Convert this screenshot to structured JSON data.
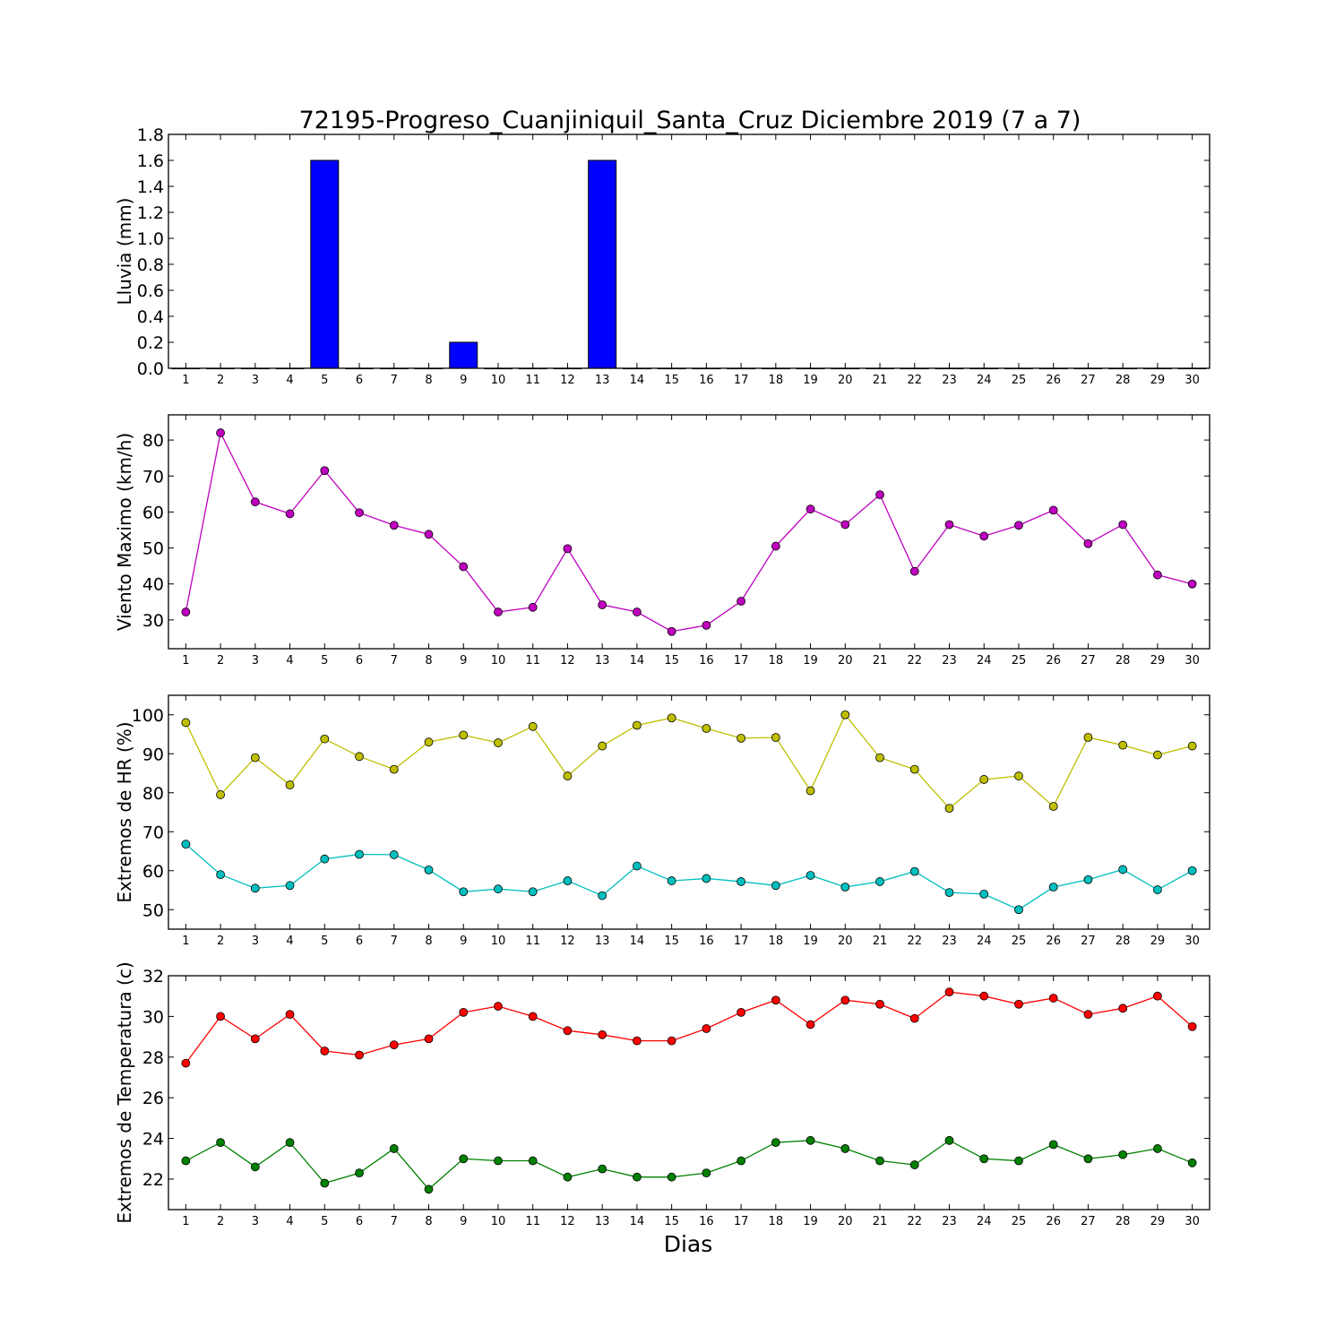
{
  "chart_data": {
    "title": "72195-Progreso_Cuanjiniquil_Santa_Cruz Diciembre 2019  (7 a 7)",
    "xlabel": "Dias",
    "x": [
      1,
      2,
      3,
      4,
      5,
      6,
      7,
      8,
      9,
      10,
      11,
      12,
      13,
      14,
      15,
      16,
      17,
      18,
      19,
      20,
      21,
      22,
      23,
      24,
      25,
      26,
      27,
      28,
      29,
      30
    ],
    "panels": [
      {
        "type": "bar",
        "ylabel": "Lluvia (mm)",
        "ylim": [
          0,
          1.8
        ],
        "yticks": [
          0.0,
          0.2,
          0.4,
          0.6,
          0.8,
          1.0,
          1.2,
          1.4,
          1.6,
          1.8
        ],
        "ytick_decimals": 1,
        "series": [
          {
            "color": "#0000ff",
            "values": [
              0,
              0,
              0,
              0,
              1.6,
              0,
              0,
              0,
              0.2,
              0,
              0,
              0,
              1.6,
              0,
              0,
              0,
              0,
              0,
              0,
              0,
              0,
              0,
              0,
              0,
              0,
              0,
              0,
              0,
              0,
              0
            ]
          }
        ]
      },
      {
        "type": "line",
        "ylabel": "Viento Maximo (km/h)",
        "ylim": [
          22,
          87
        ],
        "yticks": [
          30,
          40,
          50,
          60,
          70,
          80
        ],
        "ytick_decimals": 0,
        "series": [
          {
            "color": "#bf00bf",
            "values": [
              32.2,
              82,
              62.8,
              59.5,
              71.5,
              59.8,
              56.3,
              53.8,
              44.8,
              32.2,
              33.5,
              49.8,
              34.2,
              32.2,
              26.8,
              28.5,
              35.2,
              50.5,
              60.8,
              56.5,
              64.8,
              43.5,
              56.5,
              53.3,
              56.3,
              60.5,
              51.2,
              56.5,
              42.5,
              40.0
            ]
          }
        ]
      },
      {
        "type": "line",
        "ylabel": "Extremos de HR (%)",
        "ylim": [
          45,
          105
        ],
        "yticks": [
          50,
          60,
          70,
          80,
          90,
          100
        ],
        "ytick_decimals": 0,
        "series": [
          {
            "color": "#bfbf00",
            "values": [
              98,
              79.5,
              89,
              82,
              93.8,
              89.3,
              86,
              93,
              94.8,
              92.8,
              97,
              84.3,
              92,
              97.3,
              99.2,
              96.5,
              94,
              94.2,
              80.5,
              100,
              89,
              86,
              76,
              83.4,
              84.3,
              76.5,
              94.2,
              92.2,
              89.7,
              92
            ]
          },
          {
            "color": "#00bfbf",
            "values": [
              66.8,
              59,
              55.5,
              56.2,
              63,
              64.2,
              64.1,
              60.2,
              54.6,
              55.3,
              54.6,
              57.4,
              53.6,
              61.2,
              57.4,
              58,
              57.2,
              56.2,
              58.8,
              55.8,
              57.2,
              59.8,
              54.4,
              54,
              50,
              55.8,
              57.7,
              60.3,
              55.1,
              60
            ]
          }
        ]
      },
      {
        "type": "line",
        "ylabel": "Extremos de Temperatura (c)",
        "ylim": [
          20.5,
          32
        ],
        "yticks": [
          22,
          24,
          26,
          28,
          30,
          32
        ],
        "ytick_decimals": 0,
        "series": [
          {
            "color": "#ff0000",
            "values": [
              27.7,
              30,
              28.9,
              30.1,
              28.3,
              28.1,
              28.6,
              28.9,
              30.2,
              30.5,
              30,
              29.3,
              29.1,
              28.8,
              28.8,
              29.4,
              30.2,
              30.8,
              29.6,
              30.8,
              30.6,
              29.9,
              31.2,
              31,
              30.6,
              30.9,
              30.1,
              30.4,
              31,
              29.5
            ]
          },
          {
            "color": "#008000",
            "values": [
              22.9,
              23.8,
              22.6,
              23.8,
              21.8,
              22.3,
              23.5,
              21.5,
              23,
              22.9,
              22.9,
              22.1,
              22.5,
              22.1,
              22.1,
              22.3,
              22.9,
              23.8,
              23.9,
              23.5,
              22.9,
              22.7,
              23.9,
              23,
              22.9,
              23.7,
              23,
              23.2,
              23.5,
              22.8
            ]
          }
        ]
      }
    ]
  }
}
